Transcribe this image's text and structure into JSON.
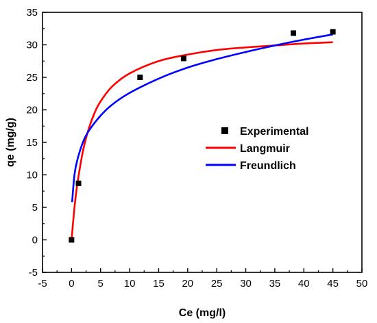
{
  "chart_data": {
    "type": "scatter",
    "xlabel": "Ce (mg/l)",
    "ylabel": "qe (mg/g)",
    "xlim": [
      -5,
      50
    ],
    "ylim": [
      -5,
      35
    ],
    "x_ticks": [
      -5,
      0,
      5,
      10,
      15,
      20,
      25,
      30,
      35,
      40,
      45,
      50
    ],
    "y_ticks": [
      -5,
      0,
      5,
      10,
      15,
      20,
      25,
      30,
      35
    ],
    "grid": false,
    "legend_position": "center-right",
    "series": [
      {
        "name": "Experimental",
        "kind": "scatter",
        "marker": "square",
        "color": "#000000",
        "x": [
          0,
          1.2,
          11.8,
          19.3,
          38.2,
          45.0
        ],
        "y": [
          0,
          8.7,
          25.0,
          27.9,
          31.8,
          32.0
        ]
      },
      {
        "name": "Langmuir",
        "kind": "line",
        "color": "#ff0000",
        "x": [
          0,
          0.5,
          1,
          2,
          3,
          4,
          5,
          7,
          10,
          15,
          20,
          25,
          30,
          35,
          40,
          45
        ],
        "y": [
          0,
          4.9,
          8.6,
          13.8,
          17.2,
          19.6,
          21.3,
          23.6,
          25.6,
          27.5,
          28.5,
          29.2,
          29.6,
          29.9,
          30.2,
          30.4
        ]
      },
      {
        "name": "Freundlich",
        "kind": "line",
        "color": "#0000ff",
        "x": [
          0.1,
          0.5,
          1,
          2,
          3,
          5,
          7,
          10,
          15,
          20,
          25,
          30,
          35,
          40,
          45
        ],
        "y": [
          5.8,
          10.0,
          12.3,
          15.1,
          16.8,
          19.1,
          20.8,
          22.6,
          24.8,
          26.5,
          27.8,
          28.9,
          29.9,
          30.8,
          31.6
        ]
      }
    ]
  }
}
